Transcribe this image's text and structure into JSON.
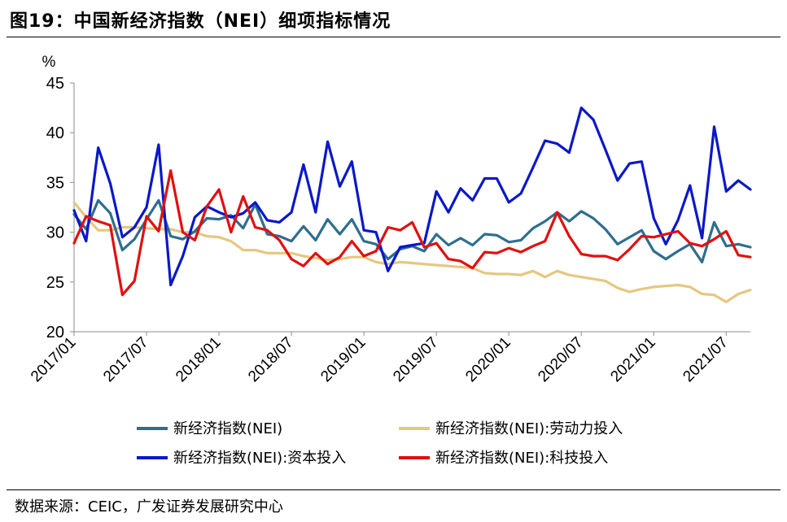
{
  "title": "图19：中国新经济指数（NEI）细项指标情况",
  "source": "数据来源：CEIC，广发证券发展研究中心",
  "chart_data": {
    "type": "line",
    "ylabel": "%",
    "ylim": [
      20,
      45
    ],
    "yticks": [
      "20",
      "25",
      "30",
      "35",
      "40",
      "45"
    ],
    "x_tick_labels": [
      "2017/01",
      "2017/07",
      "2018/01",
      "2018/07",
      "2019/01",
      "2019/07",
      "2020/01",
      "2020/07",
      "2021/01",
      "2021/07"
    ],
    "x": [
      "2017/01",
      "2017/02",
      "2017/03",
      "2017/04",
      "2017/05",
      "2017/06",
      "2017/07",
      "2017/08",
      "2017/09",
      "2017/10",
      "2017/11",
      "2017/12",
      "2018/01",
      "2018/02",
      "2018/03",
      "2018/04",
      "2018/05",
      "2018/06",
      "2018/07",
      "2018/08",
      "2018/09",
      "2018/10",
      "2018/11",
      "2018/12",
      "2019/01",
      "2019/02",
      "2019/03",
      "2019/04",
      "2019/05",
      "2019/06",
      "2019/07",
      "2019/08",
      "2019/09",
      "2019/10",
      "2019/11",
      "2019/12",
      "2020/01",
      "2020/02",
      "2020/03",
      "2020/04",
      "2020/05",
      "2020/06",
      "2020/07",
      "2020/08",
      "2020/09",
      "2020/10",
      "2020/11",
      "2020/12",
      "2021/01",
      "2021/02",
      "2021/03",
      "2021/04",
      "2021/05",
      "2021/06",
      "2021/07",
      "2021/08",
      "2021/09"
    ],
    "series": [
      {
        "name": "新经济指数(NEI)",
        "color": "#2E6E8E",
        "values": [
          31.8,
          30.3,
          33.2,
          31.9,
          28.2,
          29.3,
          31.3,
          33.2,
          29.6,
          29.3,
          30.1,
          31.4,
          31.3,
          31.7,
          30.4,
          32.8,
          29.8,
          29.6,
          29.1,
          30.6,
          29.2,
          31.3,
          29.8,
          31.3,
          29.1,
          28.8,
          27.3,
          28.3,
          28.6,
          28.1,
          29.8,
          28.7,
          29.4,
          28.7,
          29.8,
          29.7,
          29.0,
          29.2,
          30.4,
          31.1,
          32.0,
          31.1,
          32.1,
          31.4,
          30.3,
          28.8,
          29.5,
          30.2,
          28.1,
          27.3,
          28.1,
          28.8,
          27.0,
          31.0,
          28.6,
          28.8,
          28.5
        ]
      },
      {
        "name": "新经济指数(NEI):劳动力投入",
        "color": "#E5C77F",
        "values": [
          33.0,
          31.5,
          30.2,
          30.2,
          30.5,
          30.5,
          30.4,
          30.3,
          30.3,
          30.0,
          30.0,
          29.6,
          29.5,
          29.1,
          28.2,
          28.2,
          27.9,
          27.9,
          27.9,
          27.6,
          27.4,
          27.2,
          27.3,
          27.5,
          27.5,
          27.0,
          26.8,
          27.0,
          26.9,
          26.8,
          26.7,
          26.6,
          26.5,
          26.4,
          25.9,
          25.8,
          25.8,
          25.7,
          26.1,
          25.5,
          26.1,
          25.7,
          25.5,
          25.3,
          25.1,
          24.4,
          24.0,
          24.3,
          24.5,
          24.6,
          24.7,
          24.5,
          23.8,
          23.7,
          23.0,
          23.8,
          24.2
        ]
      },
      {
        "name": "新经济指数(NEI):资本投入",
        "color": "#0A18C8",
        "values": [
          32.2,
          29.1,
          38.5,
          34.9,
          29.5,
          30.5,
          32.5,
          38.8,
          24.7,
          27.6,
          31.5,
          32.6,
          32.0,
          31.5,
          31.9,
          33.0,
          31.2,
          31.0,
          32.0,
          36.8,
          32.0,
          39.1,
          34.6,
          37.1,
          30.2,
          30.0,
          26.1,
          28.5,
          28.7,
          28.9,
          34.1,
          32.0,
          34.4,
          33.2,
          35.4,
          35.4,
          33.0,
          33.9,
          36.5,
          39.2,
          38.9,
          38.0,
          42.5,
          41.3,
          38.3,
          35.2,
          36.9,
          37.1,
          31.4,
          28.8,
          31.2,
          34.7,
          29.4,
          40.6,
          34.1,
          35.2,
          34.3
        ]
      },
      {
        "name": "新经济指数(NEI):科技投入",
        "color": "#E01010",
        "values": [
          28.9,
          31.6,
          31.1,
          30.7,
          23.7,
          25.1,
          31.6,
          30.1,
          36.2,
          30.0,
          29.2,
          32.6,
          34.3,
          30.0,
          33.6,
          30.5,
          30.2,
          29.2,
          27.3,
          26.6,
          27.9,
          26.8,
          27.5,
          29.1,
          27.6,
          28.1,
          30.5,
          30.2,
          31.0,
          28.5,
          28.9,
          27.3,
          27.1,
          26.4,
          28.0,
          27.9,
          28.4,
          28.0,
          28.6,
          29.1,
          32.0,
          29.6,
          27.8,
          27.6,
          27.6,
          27.2,
          28.3,
          29.6,
          29.5,
          29.8,
          30.1,
          28.9,
          28.6,
          29.3,
          30.1,
          27.7,
          27.5
        ]
      }
    ],
    "grid": false,
    "legend_position": "bottom"
  }
}
